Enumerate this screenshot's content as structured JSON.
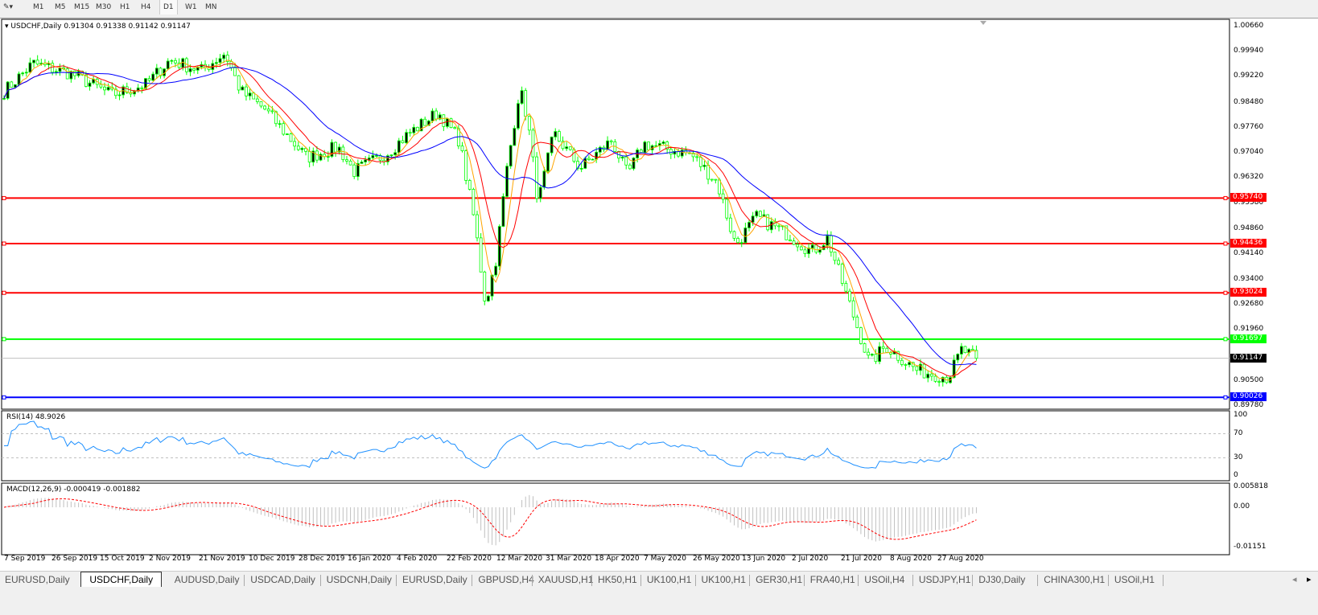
{
  "toolbar": {
    "timeframes": [
      "M1",
      "M5",
      "M15",
      "M30",
      "H1",
      "H4",
      "D1",
      "W1",
      "MN"
    ],
    "selected": "D1"
  },
  "chart": {
    "header": "USDCHF,Daily  0.91304 0.91338 0.91142 0.91147",
    "price_axis": [
      "1.00660",
      "0.99940",
      "0.99220",
      "0.98480",
      "0.97760",
      "0.97040",
      "0.96320",
      "0.95580",
      "0.94860",
      "0.94140",
      "0.93400",
      "0.92680",
      "0.91960",
      "0.90500",
      "0.89780"
    ],
    "levels": [
      {
        "price": "0.95740",
        "color": "#ff0000"
      },
      {
        "price": "0.94436",
        "color": "#ff0000"
      },
      {
        "price": "0.93024",
        "color": "#ff0000"
      },
      {
        "price": "0.91697",
        "color": "#00ff00"
      },
      {
        "price": "0.90026",
        "color": "#0000ff"
      }
    ],
    "current_price": "0.91147",
    "date_axis": [
      "7 Sep 2019",
      "26 Sep 2019",
      "15 Oct 2019",
      "2 Nov 2019",
      "21 Nov 2019",
      "10 Dec 2019",
      "28 Dec 2019",
      "16 Jan 2020",
      "4 Feb 2020",
      "22 Feb 2020",
      "12 Mar 2020",
      "31 Mar 2020",
      "18 Apr 2020",
      "7 May 2020",
      "26 May 2020",
      "13 Jun 2020",
      "2 Jul 2020",
      "21 Jul 2020",
      "8 Aug 2020",
      "27 Aug 2020"
    ],
    "colors": {
      "bull": "#00ff00",
      "bear": "#00ff00",
      "ma_fast": "#ffa500",
      "ma_mid": "#ff0000",
      "ma_slow": "#0000ff",
      "rsi": "#1e90ff",
      "macd_hist": "#c0c0c0",
      "macd_signal": "#ff0000"
    }
  },
  "rsi": {
    "label": "RSI(14) 48.9026",
    "axis": [
      "100",
      "70",
      "30",
      "0"
    ]
  },
  "macd": {
    "label": "MACD(12,26,9) -0.000419 -0.001882",
    "axis": [
      "0.005818",
      "0.00",
      "-0.01151"
    ]
  },
  "chart_data": {
    "type": "candlestick",
    "symbol": "USDCHF",
    "timeframe": "Daily",
    "ylim": [
      0.8978,
      1.0066
    ],
    "approx_path": [
      [
        "2019-09-07",
        0.988
      ],
      [
        "2019-09-18",
        0.996
      ],
      [
        "2019-10-03",
        0.993
      ],
      [
        "2019-10-18",
        0.987
      ],
      [
        "2019-10-31",
        0.99
      ],
      [
        "2019-11-09",
        0.997
      ],
      [
        "2019-11-21",
        0.994
      ],
      [
        "2019-11-30",
        0.999
      ],
      [
        "2019-12-06",
        0.988
      ],
      [
        "2019-12-15",
        0.983
      ],
      [
        "2019-12-31",
        0.969
      ],
      [
        "2020-01-12",
        0.972
      ],
      [
        "2020-01-18",
        0.965
      ],
      [
        "2020-01-30",
        0.97
      ],
      [
        "2020-02-08",
        0.976
      ],
      [
        "2020-02-19",
        0.982
      ],
      [
        "2020-02-27",
        0.974
      ],
      [
        "2020-03-04",
        0.95
      ],
      [
        "2020-03-08",
        0.927
      ],
      [
        "2020-03-12",
        0.94
      ],
      [
        "2020-03-16",
        0.965
      ],
      [
        "2020-03-21",
        0.989
      ],
      [
        "2020-03-24",
        0.98
      ],
      [
        "2020-03-28",
        0.956
      ],
      [
        "2020-04-03",
        0.976
      ],
      [
        "2020-04-13",
        0.966
      ],
      [
        "2020-04-25",
        0.974
      ],
      [
        "2020-05-01",
        0.964
      ],
      [
        "2020-05-07",
        0.973
      ],
      [
        "2020-05-25",
        0.97
      ],
      [
        "2020-06-04",
        0.962
      ],
      [
        "2020-06-11",
        0.944
      ],
      [
        "2020-06-19",
        0.952
      ],
      [
        "2020-07-01",
        0.947
      ],
      [
        "2020-07-10",
        0.942
      ],
      [
        "2020-07-16",
        0.946
      ],
      [
        "2020-07-23",
        0.93
      ],
      [
        "2020-08-01",
        0.91
      ],
      [
        "2020-08-07",
        0.915
      ],
      [
        "2020-08-19",
        0.908
      ],
      [
        "2020-08-31",
        0.906
      ],
      [
        "2020-09-05",
        0.914
      ],
      [
        "2020-09-10",
        0.91147
      ]
    ]
  },
  "tabs": [
    {
      "label": "EURUSD,Daily"
    },
    {
      "label": "USDCHF,Daily",
      "active": true
    },
    {
      "label": "AUDUSD,Daily"
    },
    {
      "label": "USDCAD,Daily"
    },
    {
      "label": "USDCNH,Daily"
    },
    {
      "label": "EURUSD,Daily"
    },
    {
      "label": "GBPUSD,H4"
    },
    {
      "label": "XAUUSD,H1"
    },
    {
      "label": "HK50,H1"
    },
    {
      "label": "UK100,H1"
    },
    {
      "label": "UK100,H1"
    },
    {
      "label": "GER30,H1"
    },
    {
      "label": "FRA40,H1"
    },
    {
      "label": "USOil,H4"
    },
    {
      "label": "USDJPY,H1"
    },
    {
      "label": "DJ30,Daily"
    },
    {
      "label": "CHINA300,H1"
    },
    {
      "label": "USOil,H1"
    }
  ]
}
